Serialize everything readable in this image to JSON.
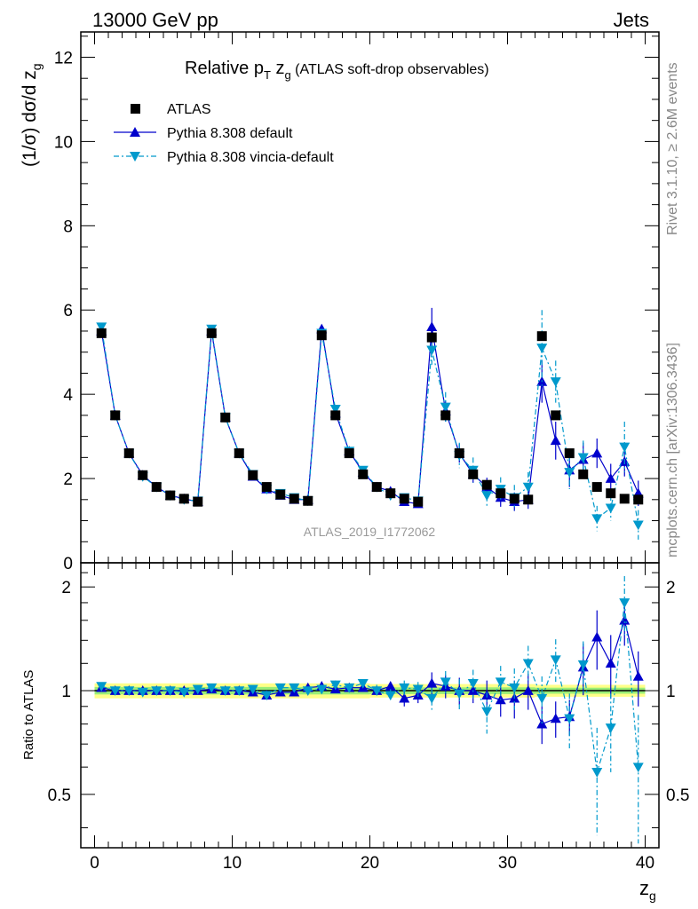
{
  "header": {
    "left": "13000 GeV pp",
    "right": "Jets"
  },
  "side_labels": {
    "rivet": "Rivet 3.1.10, ≥ 2.6M events",
    "mcplots": "mcplots.cern.ch [arXiv:1306.3436]"
  },
  "chart_data": {
    "type": "scatter",
    "title": "Relative p_T z_g (ATLAS soft-drop observables)",
    "title_parts": {
      "main": "Relative p",
      "sub": "T",
      "mid": " z",
      "sub2": "g",
      "rest": " (ATLAS soft-drop observables)"
    },
    "analysis_label": "ATLAS_2019_I1772062",
    "xlabel": {
      "main": "z",
      "sub": "g"
    },
    "ylabel": {
      "main": "(1/σ) dσ/d z",
      "sub": "g"
    },
    "ratio_ylabel": "Ratio to ATLAS",
    "xlim": [
      -1,
      41
    ],
    "ylim": [
      0,
      12.6
    ],
    "ratio_ylim": [
      0.35,
      2.35
    ],
    "ratio_scale": "log",
    "x_ticks": [
      0,
      10,
      20,
      30,
      40
    ],
    "y_ticks": [
      0,
      2,
      4,
      6,
      8,
      10,
      12
    ],
    "ratio_ticks": [
      0.5,
      1,
      2
    ],
    "legend": "top-left",
    "x": [
      0.5,
      1.5,
      2.5,
      3.5,
      4.5,
      5.5,
      6.5,
      7.5,
      8.5,
      9.5,
      10.5,
      11.5,
      12.5,
      13.5,
      14.5,
      15.5,
      16.5,
      17.5,
      18.5,
      19.5,
      20.5,
      21.5,
      22.5,
      23.5,
      24.5,
      25.5,
      26.5,
      27.5,
      28.5,
      29.5,
      30.5,
      31.5,
      32.5,
      33.5,
      34.5,
      35.5,
      36.5,
      37.5,
      38.5,
      39.5
    ],
    "series": [
      {
        "name": "ATLAS",
        "color": "#000000",
        "marker": "square",
        "values": [
          5.45,
          3.5,
          2.6,
          2.08,
          1.8,
          1.6,
          1.52,
          1.45,
          5.45,
          3.45,
          2.6,
          2.08,
          1.8,
          1.62,
          1.52,
          1.47,
          5.4,
          3.5,
          2.6,
          2.1,
          1.8,
          1.65,
          1.52,
          1.45,
          5.35,
          3.5,
          2.6,
          2.1,
          1.85,
          1.65,
          1.52,
          1.5,
          5.38,
          3.5,
          2.6,
          2.1,
          1.8,
          1.65,
          1.52,
          1.5
        ],
        "band_rel": [
          0.05,
          0.05,
          0.05,
          0.05,
          0.05,
          0.05,
          0.05,
          0.05,
          0.05,
          0.05,
          0.05,
          0.05,
          0.05,
          0.05,
          0.05,
          0.05,
          0.05,
          0.05,
          0.05,
          0.05,
          0.045,
          0.045,
          0.045,
          0.045,
          0.045,
          0.045,
          0.045,
          0.045,
          0.045,
          0.045,
          0.045,
          0.045,
          0.04,
          0.04,
          0.04,
          0.04,
          0.04,
          0.04,
          0.04,
          0.04
        ]
      },
      {
        "name": "Pythia 8.308 default",
        "color": "#0000cc",
        "marker": "triangle-up",
        "line": "solid",
        "values": [
          5.5,
          3.5,
          2.6,
          2.08,
          1.8,
          1.6,
          1.52,
          1.45,
          5.5,
          3.45,
          2.6,
          2.05,
          1.75,
          1.6,
          1.5,
          1.5,
          5.55,
          3.55,
          2.65,
          2.15,
          1.8,
          1.7,
          1.45,
          1.4,
          5.6,
          3.6,
          2.6,
          2.1,
          1.8,
          1.55,
          1.45,
          1.5,
          4.3,
          2.9,
          2.2,
          2.45,
          2.6,
          2.0,
          2.4,
          1.65
        ],
        "errors": [
          0.04,
          0.04,
          0.03,
          0.03,
          0.03,
          0.03,
          0.03,
          0.03,
          0.05,
          0.04,
          0.03,
          0.03,
          0.03,
          0.03,
          0.03,
          0.03,
          0.07,
          0.06,
          0.05,
          0.05,
          0.05,
          0.05,
          0.06,
          0.07,
          0.45,
          0.25,
          0.22,
          0.2,
          0.22,
          0.22,
          0.22,
          0.22,
          0.5,
          0.45,
          0.4,
          0.4,
          0.35,
          0.35,
          0.35,
          0.3
        ],
        "ratio": [
          1.02,
          1.0,
          1.0,
          1.0,
          1.0,
          1.0,
          1.0,
          1.0,
          1.01,
          1.0,
          1.0,
          0.99,
          0.97,
          0.99,
          0.99,
          1.02,
          1.03,
          1.01,
          1.02,
          1.02,
          1.0,
          1.03,
          0.95,
          0.97,
          1.05,
          1.03,
          1.0,
          1.0,
          0.97,
          0.94,
          0.95,
          1.0,
          0.8,
          0.83,
          0.84,
          1.17,
          1.43,
          1.2,
          1.6,
          1.1
        ],
        "ratio_errors": [
          0.02,
          0.02,
          0.02,
          0.02,
          0.02,
          0.02,
          0.02,
          0.02,
          0.02,
          0.02,
          0.02,
          0.02,
          0.02,
          0.02,
          0.02,
          0.02,
          0.02,
          0.02,
          0.02,
          0.02,
          0.03,
          0.03,
          0.05,
          0.05,
          0.08,
          0.08,
          0.09,
          0.08,
          0.1,
          0.1,
          0.12,
          0.12,
          0.1,
          0.1,
          0.1,
          0.2,
          0.28,
          0.25,
          0.25,
          0.2
        ]
      },
      {
        "name": "Pythia 8.308 vincia-default",
        "color": "#0099cc",
        "marker": "triangle-down",
        "line": "dash-dot",
        "values": [
          5.6,
          3.5,
          2.6,
          2.05,
          1.8,
          1.6,
          1.5,
          1.47,
          5.55,
          3.45,
          2.6,
          2.1,
          1.75,
          1.65,
          1.55,
          1.47,
          5.45,
          3.65,
          2.65,
          2.2,
          1.8,
          1.6,
          1.55,
          1.47,
          5.05,
          3.7,
          2.55,
          2.2,
          1.6,
          1.75,
          1.55,
          1.8,
          5.1,
          4.3,
          2.15,
          2.5,
          1.05,
          1.3,
          2.75,
          0.9
        ],
        "errors": [
          0.04,
          0.04,
          0.03,
          0.03,
          0.03,
          0.03,
          0.03,
          0.03,
          0.05,
          0.04,
          0.03,
          0.03,
          0.03,
          0.03,
          0.03,
          0.03,
          0.07,
          0.06,
          0.05,
          0.05,
          0.05,
          0.05,
          0.06,
          0.07,
          0.35,
          0.35,
          0.3,
          0.3,
          0.28,
          0.28,
          0.3,
          0.35,
          0.9,
          0.5,
          0.4,
          0.4,
          0.3,
          0.3,
          0.6,
          0.35
        ],
        "ratio": [
          1.03,
          1.0,
          1.0,
          0.99,
          1.0,
          1.0,
          0.99,
          1.01,
          1.02,
          1.0,
          1.0,
          1.01,
          0.97,
          1.02,
          1.02,
          1.0,
          1.01,
          1.04,
          1.02,
          1.05,
          1.0,
          0.97,
          1.02,
          1.01,
          0.95,
          1.06,
          0.98,
          1.05,
          0.87,
          1.06,
          1.02,
          1.2,
          0.95,
          1.23,
          0.83,
          1.19,
          0.58,
          0.78,
          1.8,
          0.6
        ],
        "ratio_errors": [
          0.02,
          0.02,
          0.02,
          0.02,
          0.02,
          0.02,
          0.02,
          0.02,
          0.02,
          0.02,
          0.02,
          0.02,
          0.02,
          0.02,
          0.02,
          0.02,
          0.03,
          0.03,
          0.03,
          0.03,
          0.04,
          0.04,
          0.05,
          0.05,
          0.07,
          0.08,
          0.1,
          0.1,
          0.12,
          0.12,
          0.14,
          0.15,
          0.15,
          0.18,
          0.15,
          0.2,
          0.2,
          0.2,
          0.35,
          0.25
        ]
      }
    ]
  }
}
